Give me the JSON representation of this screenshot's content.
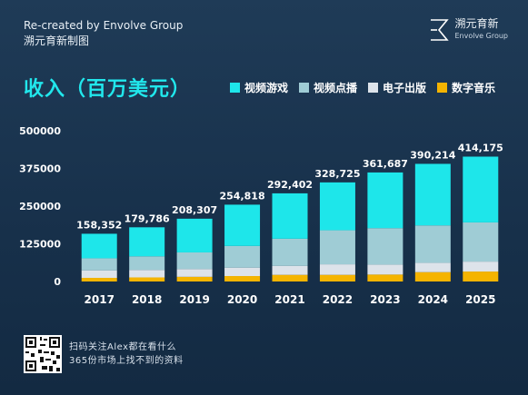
{
  "header": {
    "credit_line1": "Re-created by Envolve Group",
    "credit_line2": "溯元育新制图",
    "logo_cn": "溯元育新",
    "logo_en": "Envolve Group"
  },
  "footer": {
    "line1": "扫码关注Alex都在看什么",
    "line2": "365份市场上找不到的资料"
  },
  "colors": {
    "video_games": "#1ee6ea",
    "video_on_demand": "#9fccd5",
    "e_publishing": "#dde3ea",
    "digital_music": "#f5b400"
  },
  "chart_data": {
    "type": "bar",
    "stacked": true,
    "title": "收入（百万美元）",
    "categories": [
      "2017",
      "2018",
      "2019",
      "2020",
      "2021",
      "2022",
      "2023",
      "2024",
      "2025"
    ],
    "totals": [
      "158,352",
      "179,786",
      "208,307",
      "254,818",
      "292,402",
      "328,725",
      "361,687",
      "390,214",
      "414,175"
    ],
    "series": [
      {
        "name": "数字音乐",
        "color": "#f5b400",
        "values": [
          12000,
          13500,
          15500,
          18000,
          22000,
          22000,
          23000,
          31000,
          33000
        ]
      },
      {
        "name": "电子出版",
        "color": "#dde3ea",
        "values": [
          25000,
          25000,
          26000,
          28000,
          30000,
          35000,
          33000,
          31000,
          33000
        ]
      },
      {
        "name": "视频点播",
        "color": "#9fccd5",
        "values": [
          40000,
          45000,
          55000,
          72000,
          90000,
          113000,
          121000,
          124000,
          130000
        ]
      },
      {
        "name": "视频游戏",
        "color": "#1ee6ea",
        "values": [
          81352,
          96286,
          111807,
          136818,
          150402,
          158725,
          184687,
          204214,
          218175
        ]
      }
    ],
    "legend_order": [
      "视频游戏",
      "视频点播",
      "电子出版",
      "数字音乐"
    ],
    "y_ticks": [
      "500000",
      "375000",
      "250000",
      "125000",
      "0"
    ],
    "y_tick_values": [
      500000,
      375000,
      250000,
      125000,
      0
    ],
    "ylim": [
      0,
      500000
    ],
    "grid": false,
    "legend_position": "top-right"
  }
}
